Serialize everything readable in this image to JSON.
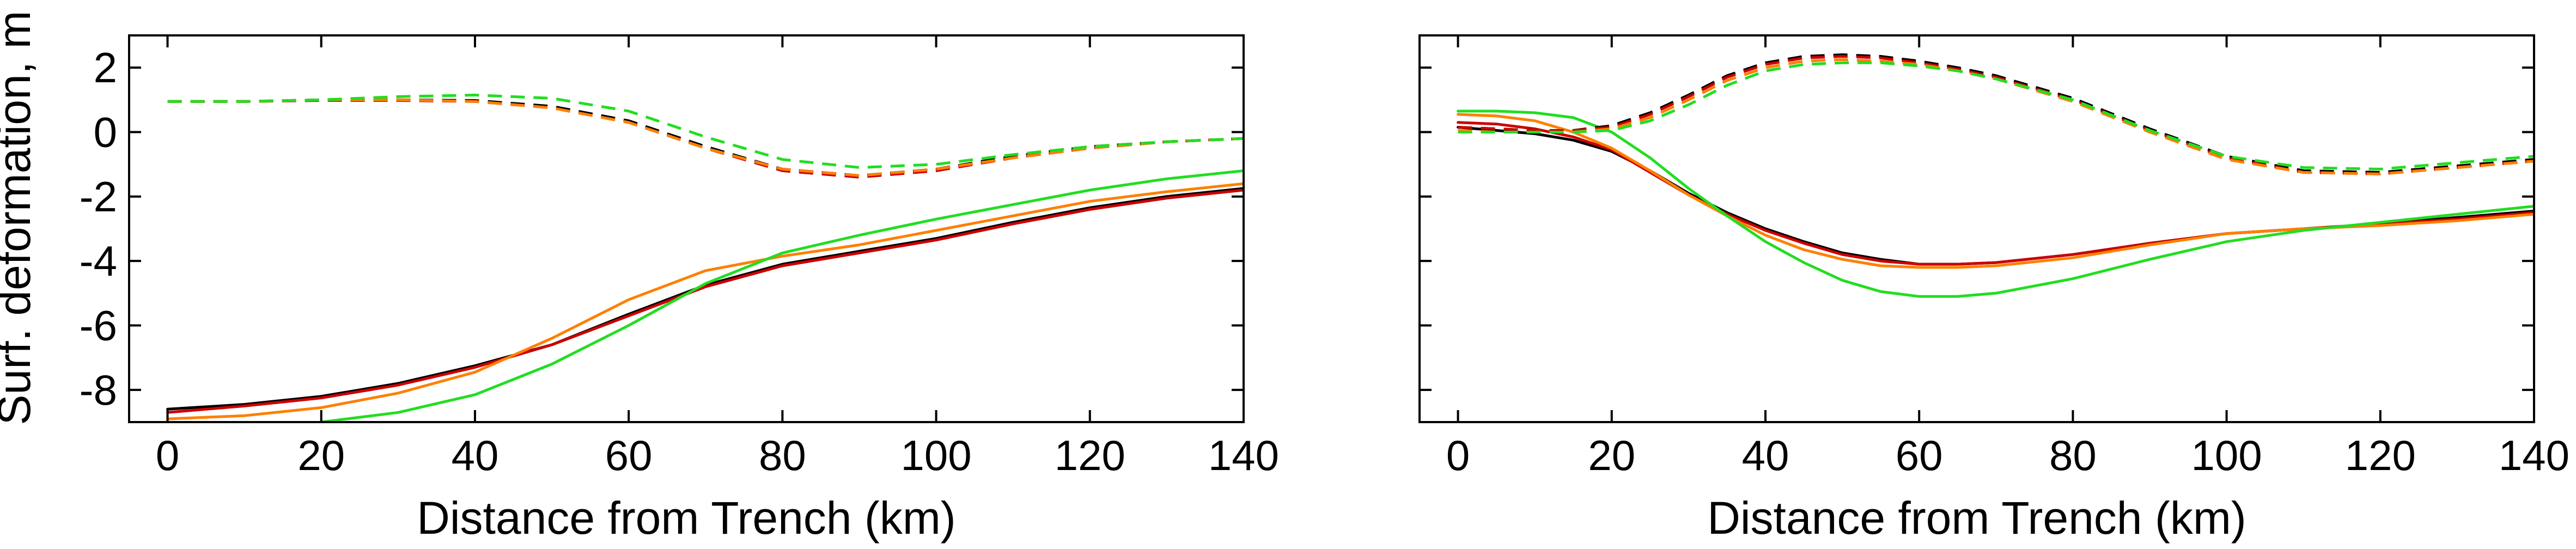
{
  "chart_data": [
    {
      "type": "line",
      "panel": "left",
      "title": "",
      "xlabel": "Distance from Trench (km)",
      "ylabel": "Surf. deformation, m",
      "xlim": [
        -5,
        140
      ],
      "ylim": [
        -9,
        3
      ],
      "xticks": [
        0,
        20,
        40,
        60,
        80,
        100,
        120,
        140
      ],
      "yticks": [
        -8,
        -6,
        -4,
        -2,
        0,
        2
      ],
      "grid": false,
      "legend": "none",
      "series": [
        {
          "color": "#000000",
          "dash": false,
          "x": [
            0,
            10,
            20,
            30,
            40,
            50,
            60,
            70,
            80,
            90,
            100,
            110,
            120,
            130,
            140
          ],
          "y": [
            -8.6,
            -8.45,
            -8.2,
            -7.8,
            -7.25,
            -6.6,
            -5.65,
            -4.75,
            -4.1,
            -3.7,
            -3.3,
            -2.8,
            -2.35,
            -2.0,
            -1.75
          ]
        },
        {
          "color": "#cc0000",
          "dash": false,
          "x": [
            0,
            10,
            20,
            30,
            40,
            50,
            60,
            70,
            80,
            90,
            100,
            110,
            120,
            130,
            140
          ],
          "y": [
            -8.7,
            -8.5,
            -8.25,
            -7.85,
            -7.3,
            -6.6,
            -5.7,
            -4.8,
            -4.15,
            -3.75,
            -3.35,
            -2.85,
            -2.4,
            -2.05,
            -1.8
          ]
        },
        {
          "color": "#ff7f00",
          "dash": false,
          "x": [
            0,
            10,
            20,
            30,
            40,
            50,
            60,
            70,
            80,
            90,
            100,
            110,
            120,
            130,
            140
          ],
          "y": [
            -8.9,
            -8.8,
            -8.55,
            -8.1,
            -7.45,
            -6.4,
            -5.2,
            -4.3,
            -3.85,
            -3.5,
            -3.05,
            -2.6,
            -2.15,
            -1.85,
            -1.6
          ]
        },
        {
          "color": "#22dd22",
          "dash": false,
          "x": [
            20,
            25,
            30,
            40,
            50,
            60,
            70,
            80,
            90,
            100,
            110,
            120,
            130,
            140
          ],
          "y": [
            -9.0,
            -8.85,
            -8.7,
            -8.15,
            -7.2,
            -6.0,
            -4.7,
            -3.75,
            -3.2,
            -2.7,
            -2.25,
            -1.8,
            -1.45,
            -1.2
          ]
        },
        {
          "color": "#000000",
          "dash": true,
          "x": [
            0,
            10,
            20,
            30,
            40,
            50,
            60,
            70,
            80,
            90,
            100,
            110,
            120,
            130,
            140
          ],
          "y": [
            0.95,
            0.95,
            1.0,
            1.0,
            0.98,
            0.8,
            0.35,
            -0.45,
            -1.15,
            -1.35,
            -1.15,
            -0.75,
            -0.45,
            -0.3,
            -0.2
          ]
        },
        {
          "color": "#cc0000",
          "dash": true,
          "x": [
            0,
            10,
            20,
            30,
            40,
            50,
            60,
            70,
            80,
            90,
            100,
            110,
            120,
            130,
            140
          ],
          "y": [
            0.95,
            0.95,
            0.98,
            0.98,
            0.95,
            0.75,
            0.3,
            -0.5,
            -1.2,
            -1.4,
            -1.2,
            -0.8,
            -0.5,
            -0.3,
            -0.2
          ]
        },
        {
          "color": "#ff7f00",
          "dash": true,
          "x": [
            0,
            10,
            20,
            30,
            40,
            50,
            60,
            70,
            80,
            90,
            100,
            110,
            120,
            130,
            140
          ],
          "y": [
            0.95,
            0.95,
            1.0,
            1.0,
            0.95,
            0.75,
            0.3,
            -0.5,
            -1.15,
            -1.35,
            -1.15,
            -0.8,
            -0.5,
            -0.3,
            -0.2
          ]
        },
        {
          "color": "#22dd22",
          "dash": true,
          "x": [
            0,
            10,
            20,
            30,
            40,
            50,
            60,
            70,
            80,
            90,
            100,
            110,
            120,
            130,
            140
          ],
          "y": [
            0.95,
            0.95,
            1.0,
            1.1,
            1.15,
            1.05,
            0.65,
            -0.15,
            -0.85,
            -1.1,
            -1.0,
            -0.7,
            -0.45,
            -0.3,
            -0.2
          ]
        }
      ]
    },
    {
      "type": "line",
      "panel": "right",
      "title": "",
      "xlabel": "Distance from Trench (km)",
      "ylabel": "",
      "xlim": [
        -5,
        140
      ],
      "ylim": [
        -9,
        3
      ],
      "xticks": [
        0,
        20,
        40,
        60,
        80,
        100,
        120,
        140
      ],
      "yticks": [
        -8,
        -6,
        -4,
        -2,
        0,
        2
      ],
      "show_ytick_labels": false,
      "grid": false,
      "legend": "none",
      "series": [
        {
          "color": "#000000",
          "dash": false,
          "x": [
            0,
            5,
            10,
            15,
            20,
            25,
            30,
            35,
            40,
            45,
            50,
            55,
            60,
            65,
            70,
            80,
            90,
            100,
            110,
            120,
            130,
            140
          ],
          "y": [
            0.15,
            0.05,
            -0.05,
            -0.25,
            -0.6,
            -1.2,
            -1.9,
            -2.5,
            -3.0,
            -3.4,
            -3.75,
            -3.95,
            -4.1,
            -4.1,
            -4.05,
            -3.8,
            -3.45,
            -3.15,
            -3.0,
            -2.85,
            -2.65,
            -2.45
          ]
        },
        {
          "color": "#cc0000",
          "dash": false,
          "x": [
            0,
            5,
            10,
            15,
            20,
            25,
            30,
            35,
            40,
            45,
            50,
            55,
            60,
            65,
            70,
            80,
            90,
            100,
            110,
            120,
            130,
            140
          ],
          "y": [
            0.3,
            0.25,
            0.1,
            -0.15,
            -0.55,
            -1.25,
            -1.95,
            -2.55,
            -3.05,
            -3.45,
            -3.8,
            -4.0,
            -4.1,
            -4.1,
            -4.05,
            -3.8,
            -3.45,
            -3.15,
            -3.0,
            -2.85,
            -2.7,
            -2.5
          ]
        },
        {
          "color": "#ff7f00",
          "dash": false,
          "x": [
            0,
            5,
            10,
            15,
            20,
            25,
            30,
            35,
            40,
            45,
            50,
            55,
            60,
            65,
            70,
            80,
            90,
            100,
            110,
            120,
            130,
            140
          ],
          "y": [
            0.55,
            0.5,
            0.35,
            0.0,
            -0.5,
            -1.2,
            -1.95,
            -2.6,
            -3.2,
            -3.65,
            -3.95,
            -4.15,
            -4.2,
            -4.2,
            -4.15,
            -3.9,
            -3.5,
            -3.15,
            -3.0,
            -2.9,
            -2.75,
            -2.55
          ]
        },
        {
          "color": "#22dd22",
          "dash": false,
          "x": [
            0,
            5,
            10,
            15,
            20,
            25,
            30,
            35,
            40,
            45,
            50,
            55,
            60,
            65,
            70,
            80,
            90,
            100,
            110,
            120,
            130,
            140
          ],
          "y": [
            0.65,
            0.65,
            0.6,
            0.45,
            0.0,
            -0.8,
            -1.75,
            -2.6,
            -3.4,
            -4.05,
            -4.6,
            -4.95,
            -5.1,
            -5.1,
            -5.0,
            -4.55,
            -3.95,
            -3.4,
            -3.05,
            -2.8,
            -2.55,
            -2.3
          ]
        },
        {
          "color": "#000000",
          "dash": true,
          "x": [
            0,
            5,
            10,
            15,
            20,
            25,
            30,
            35,
            40,
            45,
            50,
            55,
            60,
            65,
            70,
            80,
            90,
            100,
            110,
            120,
            130,
            140
          ],
          "y": [
            0.15,
            0.1,
            0.05,
            0.05,
            0.2,
            0.6,
            1.15,
            1.75,
            2.15,
            2.35,
            2.4,
            2.35,
            2.2,
            2.0,
            1.75,
            1.05,
            0.1,
            -0.75,
            -1.2,
            -1.25,
            -1.05,
            -0.85
          ]
        },
        {
          "color": "#cc0000",
          "dash": true,
          "x": [
            0,
            5,
            10,
            15,
            20,
            25,
            30,
            35,
            40,
            45,
            50,
            55,
            60,
            65,
            70,
            80,
            90,
            100,
            110,
            120,
            130,
            140
          ],
          "y": [
            0.15,
            0.1,
            0.05,
            0.05,
            0.15,
            0.55,
            1.1,
            1.7,
            2.1,
            2.3,
            2.35,
            2.3,
            2.15,
            1.95,
            1.7,
            1.0,
            0.05,
            -0.8,
            -1.25,
            -1.3,
            -1.1,
            -0.9
          ]
        },
        {
          "color": "#ff7f00",
          "dash": true,
          "x": [
            0,
            5,
            10,
            15,
            20,
            25,
            30,
            35,
            40,
            45,
            50,
            55,
            60,
            65,
            70,
            80,
            90,
            100,
            110,
            120,
            130,
            140
          ],
          "y": [
            0.05,
            0.0,
            0.0,
            0.0,
            0.1,
            0.45,
            1.0,
            1.6,
            2.0,
            2.2,
            2.25,
            2.2,
            2.1,
            1.9,
            1.65,
            0.95,
            0.0,
            -0.85,
            -1.25,
            -1.3,
            -1.1,
            -0.9
          ]
        },
        {
          "color": "#22dd22",
          "dash": true,
          "x": [
            0,
            5,
            10,
            15,
            20,
            25,
            30,
            35,
            40,
            45,
            50,
            55,
            60,
            65,
            70,
            80,
            90,
            100,
            110,
            120,
            130,
            140
          ],
          "y": [
            0.0,
            0.0,
            0.0,
            0.0,
            0.05,
            0.35,
            0.85,
            1.45,
            1.9,
            2.1,
            2.15,
            2.15,
            2.05,
            1.9,
            1.65,
            1.0,
            0.05,
            -0.75,
            -1.1,
            -1.15,
            -0.95,
            -0.75
          ]
        }
      ]
    }
  ]
}
